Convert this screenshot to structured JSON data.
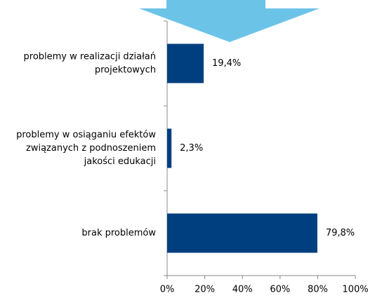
{
  "chart_data": {
    "type": "bar",
    "orientation": "horizontal",
    "categories": [
      [
        "problemy w realizacji działań",
        "projektowych"
      ],
      [
        "problemy w osiąganiu efektów",
        "związanych z podnoszeniem",
        "jakości edukacji"
      ],
      [
        "brak problemów"
      ]
    ],
    "values": [
      19.4,
      2.3,
      79.8
    ],
    "value_labels": [
      "19,4%",
      "2,3%",
      "79,8%"
    ],
    "color": "#003f7f",
    "xlim": [
      0,
      100
    ],
    "xticks": [
      {
        "value": 0,
        "label": "0%"
      },
      {
        "value": 20,
        "label": "20%"
      },
      {
        "value": 40,
        "label": "40%"
      },
      {
        "value": 60,
        "label": "60%"
      },
      {
        "value": 80,
        "label": "80%"
      },
      {
        "value": 100,
        "label": "100%"
      }
    ],
    "grid": false
  }
}
